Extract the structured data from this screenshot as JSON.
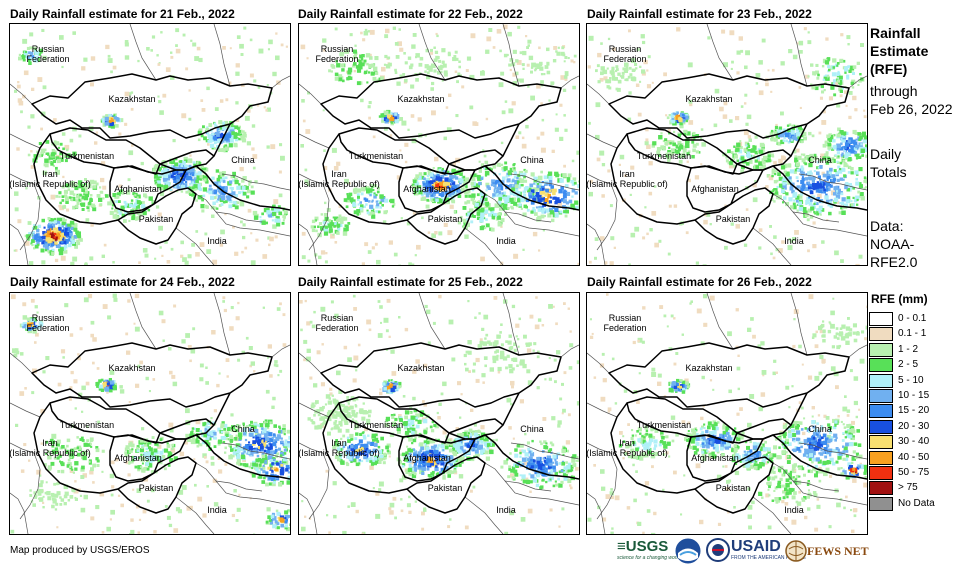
{
  "panels": [
    {
      "title": "Daily Rainfall estimate for 21 Feb., 2022"
    },
    {
      "title": "Daily Rainfall estimate for 22 Feb., 2022"
    },
    {
      "title": "Daily Rainfall estimate for 23 Feb., 2022"
    },
    {
      "title": "Daily Rainfall estimate for 24 Feb., 2022"
    },
    {
      "title": "Daily Rainfall estimate for 25 Feb., 2022"
    },
    {
      "title": "Daily Rainfall estimate for 26 Feb., 2022"
    }
  ],
  "country_labels": {
    "russia": "Russian\nFederation",
    "kazakhstan": "Kazakhstan",
    "turkmenistan": "Turkmenistan",
    "iran": "Iran\n(Islamic Republic of)",
    "afghanistan": "Afghanistan",
    "pakistan": "Pakistan",
    "china": "China",
    "india": "India"
  },
  "sidebar": {
    "title_line1": "Rainfall",
    "title_line2": "Estimate",
    "title_line3": "(RFE)",
    "through": "through",
    "date": "Feb 26, 2022",
    "daily": "Daily",
    "totals": "Totals",
    "data_label": "Data:",
    "source_line1": "NOAA-",
    "source_line2": "RFE2.0"
  },
  "legend": {
    "title": "RFE (mm)",
    "items": [
      {
        "label": "0 - 0.1",
        "color": "#ffffff"
      },
      {
        "label": "0.1 - 1",
        "color": "#f0dcc0"
      },
      {
        "label": "1 - 2",
        "color": "#b8f0b0"
      },
      {
        "label": "2 - 5",
        "color": "#58e058"
      },
      {
        "label": "5 - 10",
        "color": "#b0f0f8"
      },
      {
        "label": "10 - 15",
        "color": "#70b0f0"
      },
      {
        "label": "15 - 20",
        "color": "#3c8cf0"
      },
      {
        "label": "20 - 30",
        "color": "#1850e0"
      },
      {
        "label": "30 - 40",
        "color": "#f8e070"
      },
      {
        "label": "40 - 50",
        "color": "#f8a020"
      },
      {
        "label": "50 - 75",
        "color": "#f03010"
      },
      {
        "label": "> 75",
        "color": "#a01010"
      },
      {
        "label": "No Data",
        "color": "#909090"
      }
    ]
  },
  "credit": "Map produced by USGS/EROS",
  "logos": {
    "usgs": "≡USGS",
    "usgs_tagline": "science for a changing world",
    "usaid": "USAID",
    "usaid_tagline": "FROM THE AMERICAN PEOPLE",
    "fewsnet": "FEWS NET"
  }
}
